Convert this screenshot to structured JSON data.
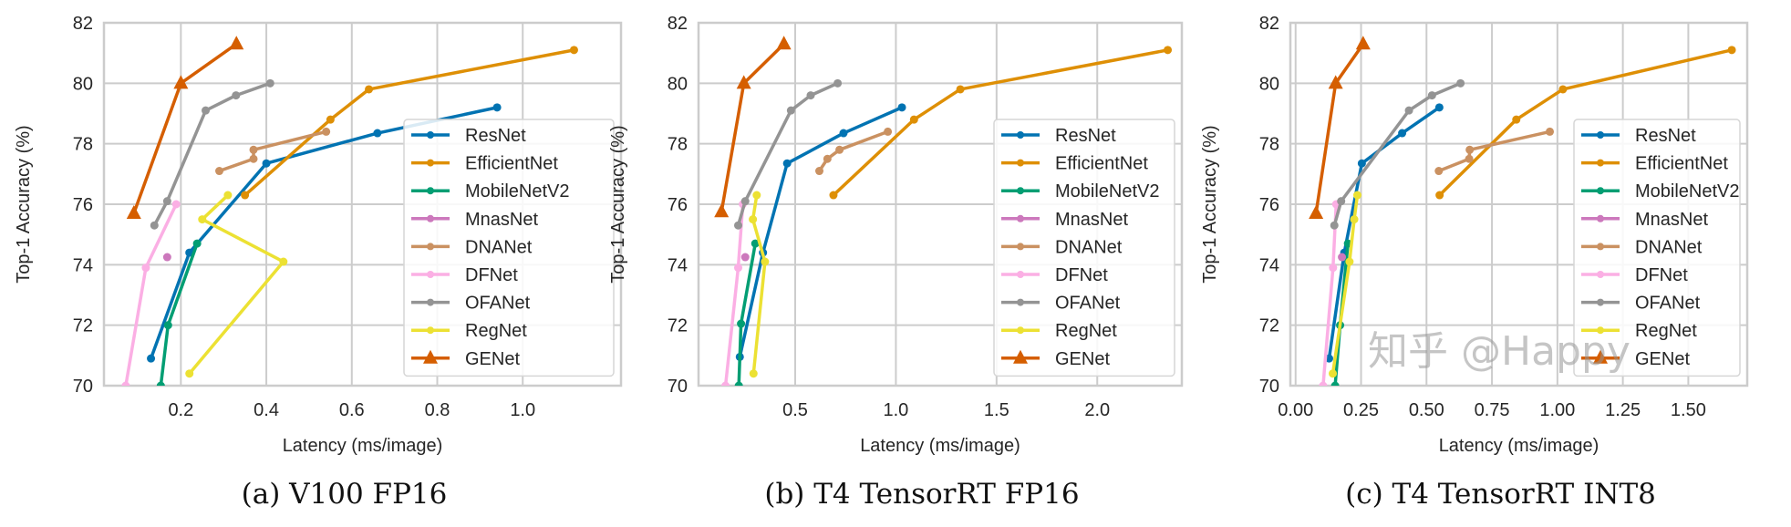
{
  "watermark": "知乎 @Happy",
  "colors": {
    "ResNet": "#0173b2",
    "EfficientNet": "#de8f05",
    "MobileNetV2": "#029e73",
    "MnasNet": "#cc78bc",
    "DNANet": "#ca9161",
    "DFNet": "#fbafe4",
    "OFANet": "#949494",
    "RegNet": "#ece133",
    "GENet": "#d55e00",
    "grid": "#cccccc"
  },
  "chart_data": [
    {
      "type": "line",
      "caption": "(a) V100 FP16",
      "xlabel": "Latency (ms/image)",
      "ylabel": "Top-1 Accuracy (%)",
      "xlim": [
        0.02,
        1.23
      ],
      "ylim": [
        70,
        82
      ],
      "xticks": [
        "0.2",
        "0.4",
        "0.6",
        "0.8",
        "1.0"
      ],
      "yticks": [
        "70",
        "72",
        "74",
        "76",
        "78",
        "80",
        "82"
      ],
      "grid": true,
      "legend": "right",
      "series": [
        {
          "name": "ResNet",
          "marker": "dot",
          "points": [
            [
              0.13,
              70.9
            ],
            [
              0.22,
              74.4
            ],
            [
              0.4,
              77.35
            ],
            [
              0.66,
              78.35
            ],
            [
              0.94,
              79.2
            ]
          ]
        },
        {
          "name": "EfficientNet",
          "marker": "dot",
          "points": [
            [
              0.35,
              76.3
            ],
            [
              0.55,
              78.8
            ],
            [
              0.64,
              79.8
            ],
            [
              1.12,
              81.1
            ]
          ]
        },
        {
          "name": "MobileNetV2",
          "marker": "dot",
          "points": [
            [
              0.153,
              70.0
            ],
            [
              0.17,
              72.0
            ],
            [
              0.238,
              74.7
            ]
          ]
        },
        {
          "name": "MnasNet",
          "marker": "dot",
          "points": [
            [
              0.168,
              74.25
            ]
          ]
        },
        {
          "name": "DNANet",
          "marker": "dot",
          "points": [
            [
              0.29,
              77.1
            ],
            [
              0.37,
              77.5
            ],
            [
              0.37,
              77.8
            ],
            [
              0.54,
              78.4
            ]
          ]
        },
        {
          "name": "DFNet",
          "marker": "dot",
          "points": [
            [
              0.071,
              70.0
            ],
            [
              0.118,
              73.9
            ],
            [
              0.189,
              76.0
            ]
          ]
        },
        {
          "name": "OFANet",
          "marker": "dot",
          "points": [
            [
              0.138,
              75.3
            ],
            [
              0.168,
              76.1
            ],
            [
              0.258,
              79.1
            ],
            [
              0.329,
              79.6
            ],
            [
              0.409,
              80.0
            ]
          ]
        },
        {
          "name": "RegNet",
          "marker": "dot",
          "points": [
            [
              0.22,
              70.4
            ],
            [
              0.44,
              74.1
            ],
            [
              0.25,
              75.5
            ],
            [
              0.31,
              76.3
            ]
          ]
        },
        {
          "name": "GENet",
          "marker": "triangle",
          "points": [
            [
              0.09,
              75.7
            ],
            [
              0.2,
              80.0
            ],
            [
              0.33,
              81.3
            ]
          ]
        }
      ]
    },
    {
      "type": "line",
      "caption": "(b) T4 TensorRT FP16",
      "xlabel": "Latency (ms/image)",
      "ylabel": "Top-1 Accuracy (%)",
      "xlim": [
        0.02,
        2.42
      ],
      "ylim": [
        70,
        82
      ],
      "xticks": [
        "0.5",
        "1.0",
        "1.5",
        "2.0"
      ],
      "yticks": [
        "70",
        "72",
        "74",
        "76",
        "78",
        "80",
        "82"
      ],
      "grid": true,
      "legend": "right",
      "series": [
        {
          "name": "ResNet",
          "marker": "dot",
          "points": [
            [
              0.225,
              70.95
            ],
            [
              0.34,
              74.4
            ],
            [
              0.46,
              77.35
            ],
            [
              0.74,
              78.35
            ],
            [
              1.03,
              79.2
            ]
          ]
        },
        {
          "name": "EfficientNet",
          "marker": "dot",
          "points": [
            [
              0.69,
              76.3
            ],
            [
              1.09,
              78.8
            ],
            [
              1.32,
              79.8
            ],
            [
              2.35,
              81.1
            ]
          ]
        },
        {
          "name": "MobileNetV2",
          "marker": "dot",
          "points": [
            [
              0.22,
              70.0
            ],
            [
              0.231,
              72.05
            ],
            [
              0.302,
              74.7
            ]
          ]
        },
        {
          "name": "MnasNet",
          "marker": "dot",
          "points": [
            [
              0.252,
              74.25
            ]
          ]
        },
        {
          "name": "DNANet",
          "marker": "dot",
          "points": [
            [
              0.62,
              77.1
            ],
            [
              0.66,
              77.5
            ],
            [
              0.72,
              77.8
            ],
            [
              0.96,
              78.4
            ]
          ]
        },
        {
          "name": "DFNet",
          "marker": "dot",
          "points": [
            [
              0.154,
              70.0
            ],
            [
              0.217,
              73.9
            ],
            [
              0.24,
              76.0
            ]
          ]
        },
        {
          "name": "OFANet",
          "marker": "dot",
          "points": [
            [
              0.217,
              75.3
            ],
            [
              0.252,
              76.1
            ],
            [
              0.479,
              79.1
            ],
            [
              0.577,
              79.6
            ],
            [
              0.711,
              80.0
            ]
          ]
        },
        {
          "name": "RegNet",
          "marker": "dot",
          "points": [
            [
              0.293,
              70.4
            ],
            [
              0.35,
              74.1
            ],
            [
              0.29,
              75.5
            ],
            [
              0.309,
              76.3
            ]
          ]
        },
        {
          "name": "GENet",
          "marker": "triangle",
          "points": [
            [
              0.134,
              75.75
            ],
            [
              0.245,
              80.0
            ],
            [
              0.444,
              81.3
            ]
          ]
        }
      ]
    },
    {
      "type": "line",
      "caption": "(c) T4 TensorRT INT8",
      "xlabel": "Latency (ms/image)",
      "ylabel": "Top-1 Accuracy (%)",
      "xlim": [
        -0.02,
        1.725
      ],
      "ylim": [
        70,
        82
      ],
      "xticks": [
        "0.00",
        "0.25",
        "0.50",
        "0.75",
        "1.00",
        "1.25",
        "1.50"
      ],
      "yticks": [
        "70",
        "72",
        "74",
        "76",
        "78",
        "80",
        "82"
      ],
      "grid": true,
      "legend": "right",
      "series": [
        {
          "name": "ResNet",
          "marker": "dot",
          "points": [
            [
              0.128,
              70.9
            ],
            [
              0.186,
              74.4
            ],
            [
              0.253,
              77.35
            ],
            [
              0.407,
              78.35
            ],
            [
              0.549,
              79.2
            ]
          ]
        },
        {
          "name": "EfficientNet",
          "marker": "dot",
          "points": [
            [
              0.55,
              76.3
            ],
            [
              0.843,
              78.8
            ],
            [
              1.021,
              79.8
            ],
            [
              1.666,
              81.1
            ]
          ]
        },
        {
          "name": "MobileNetV2",
          "marker": "dot",
          "points": [
            [
              0.151,
              70.0
            ],
            [
              0.17,
              72.0
            ],
            [
              0.2,
              74.7
            ]
          ]
        },
        {
          "name": "MnasNet",
          "marker": "dot",
          "points": [
            [
              0.177,
              74.25
            ]
          ]
        },
        {
          "name": "DNANet",
          "marker": "dot",
          "points": [
            [
              0.547,
              77.1
            ],
            [
              0.663,
              77.5
            ],
            [
              0.665,
              77.8
            ],
            [
              0.971,
              78.4
            ]
          ]
        },
        {
          "name": "DFNet",
          "marker": "dot",
          "points": [
            [
              0.105,
              70.0
            ],
            [
              0.143,
              73.9
            ],
            [
              0.155,
              76.0
            ]
          ]
        },
        {
          "name": "OFANet",
          "marker": "dot",
          "points": [
            [
              0.148,
              75.3
            ],
            [
              0.174,
              76.1
            ],
            [
              0.433,
              79.1
            ],
            [
              0.521,
              79.6
            ],
            [
              0.63,
              80.0
            ]
          ]
        },
        {
          "name": "RegNet",
          "marker": "dot",
          "points": [
            [
              0.142,
              70.4
            ],
            [
              0.206,
              74.1
            ],
            [
              0.224,
              75.5
            ],
            [
              0.236,
              76.3
            ]
          ]
        },
        {
          "name": "GENet",
          "marker": "triangle",
          "points": [
            [
              0.078,
              75.7
            ],
            [
              0.153,
              80.0
            ],
            [
              0.258,
              81.3
            ]
          ]
        }
      ]
    }
  ]
}
